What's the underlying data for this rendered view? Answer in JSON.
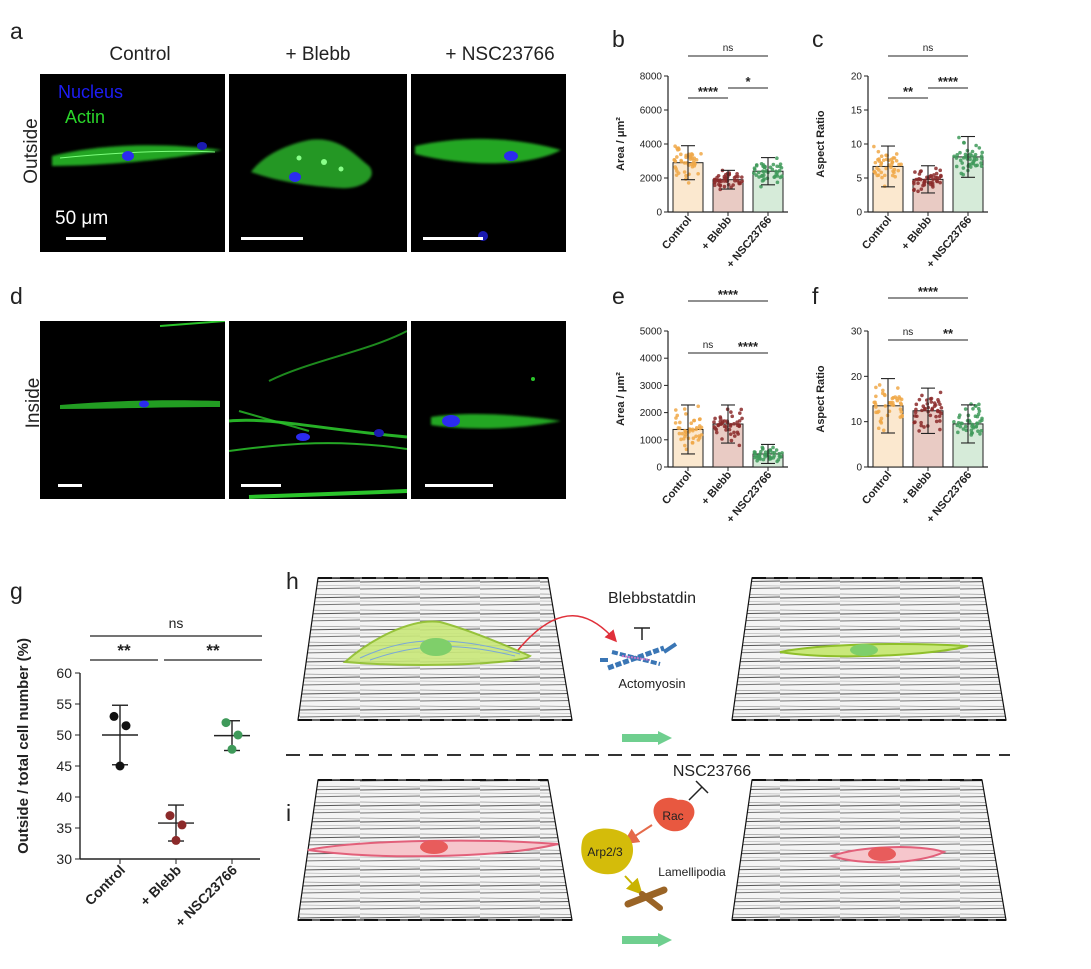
{
  "panel_a": {
    "letter": "a",
    "columns": [
      "Control",
      "+ Blebb",
      "+ NSC23766"
    ],
    "row_label": "Outside",
    "legend": {
      "nucleus": "Nucleus",
      "actin": "Actin",
      "nucleus_color": "#1d1df5",
      "actin_color": "#2ad42a"
    },
    "scale_bar": "50 μm"
  },
  "panel_d": {
    "letter": "d",
    "row_label": "Inside"
  },
  "colors": {
    "control": "#f0a848",
    "blebb": "#8b2a2a",
    "nsc": "#3f9a5a",
    "control_fill": "#fbe8cf",
    "blebb_fill": "#e9cbc4",
    "nsc_fill": "#d6ebd9"
  },
  "chart_data": [
    {
      "id": "b",
      "type": "bar",
      "ylabel": "Area / μm²",
      "categories": [
        "Control",
        "+ Blebb",
        "+ NSC23766"
      ],
      "values": [
        2900,
        1900,
        2400
      ],
      "sd": [
        1000,
        550,
        800
      ],
      "ylim": [
        0,
        8000
      ],
      "yticks": [
        0,
        2000,
        4000,
        6000,
        8000
      ],
      "significance": [
        {
          "from": 0,
          "to": 1,
          "label": "****"
        },
        {
          "from": 1,
          "to": 2,
          "label": "*"
        },
        {
          "from": 0,
          "to": 2,
          "label": "ns"
        }
      ]
    },
    {
      "id": "c",
      "type": "bar",
      "ylabel": "Aspect Ratio",
      "categories": [
        "Control",
        "+ Blebb",
        "+ NSC23766"
      ],
      "values": [
        6.7,
        4.8,
        8.1
      ],
      "sd": [
        3.0,
        2.0,
        3.0
      ],
      "ylim": [
        0,
        20
      ],
      "yticks": [
        0,
        5,
        10,
        15,
        20
      ],
      "significance": [
        {
          "from": 0,
          "to": 1,
          "label": "**"
        },
        {
          "from": 1,
          "to": 2,
          "label": "****"
        },
        {
          "from": 0,
          "to": 2,
          "label": "ns"
        }
      ]
    },
    {
      "id": "e",
      "type": "bar",
      "ylabel": "Area / μm²",
      "categories": [
        "Control",
        "+ Blebb",
        "+ NSC23766"
      ],
      "values": [
        1380,
        1580,
        480
      ],
      "sd": [
        900,
        700,
        350
      ],
      "ylim": [
        0,
        5000
      ],
      "yticks": [
        0,
        1000,
        2000,
        3000,
        4000,
        5000
      ],
      "significance": [
        {
          "from": 0,
          "to": 1,
          "label": "ns"
        },
        {
          "from": 1,
          "to": 2,
          "label": "****"
        },
        {
          "from": 0,
          "to": 2,
          "label": "****"
        }
      ]
    },
    {
      "id": "f",
      "type": "bar",
      "ylabel": "Aspect Ratio",
      "categories": [
        "Control",
        "+ Blebb",
        "+ NSC23766"
      ],
      "values": [
        13.5,
        12.4,
        9.5
      ],
      "sd": [
        6.0,
        5.0,
        4.2
      ],
      "ylim": [
        0,
        30
      ],
      "yticks": [
        0,
        10,
        20,
        30
      ],
      "significance": [
        {
          "from": 0,
          "to": 1,
          "label": "ns"
        },
        {
          "from": 1,
          "to": 2,
          "label": "**"
        },
        {
          "from": 0,
          "to": 2,
          "label": "****"
        }
      ]
    },
    {
      "id": "g",
      "type": "scatter",
      "ylabel": "Outside / total cell number (%)",
      "categories": [
        "Control",
        "+ Blebb",
        "+ NSC23766"
      ],
      "points": [
        [
          53,
          51.5,
          45
        ],
        [
          37,
          35.5,
          33
        ],
        [
          52,
          50,
          47.7
        ]
      ],
      "means": [
        50,
        35.8,
        49.9
      ],
      "sd": [
        4.8,
        2.9,
        2.4
      ],
      "ylim": [
        30,
        60
      ],
      "yticks": [
        30,
        35,
        40,
        45,
        50,
        55,
        60
      ],
      "significance": [
        {
          "from": 0,
          "to": 1,
          "label": "**"
        },
        {
          "from": 1,
          "to": 2,
          "label": "**"
        },
        {
          "from": 0,
          "to": 2,
          "label": "ns"
        }
      ]
    }
  ],
  "schematic_h": {
    "letter": "h",
    "drug": "Blebbstatdin",
    "target": "Actomyosin"
  },
  "schematic_i": {
    "letter": "i",
    "drug": "NSC23766",
    "rac": "Rac",
    "arp": "Arp2/3",
    "lamellipodia": "Lamellipodia"
  },
  "panel_letters": {
    "b": "b",
    "c": "c",
    "e": "e",
    "f": "f",
    "g": "g"
  }
}
